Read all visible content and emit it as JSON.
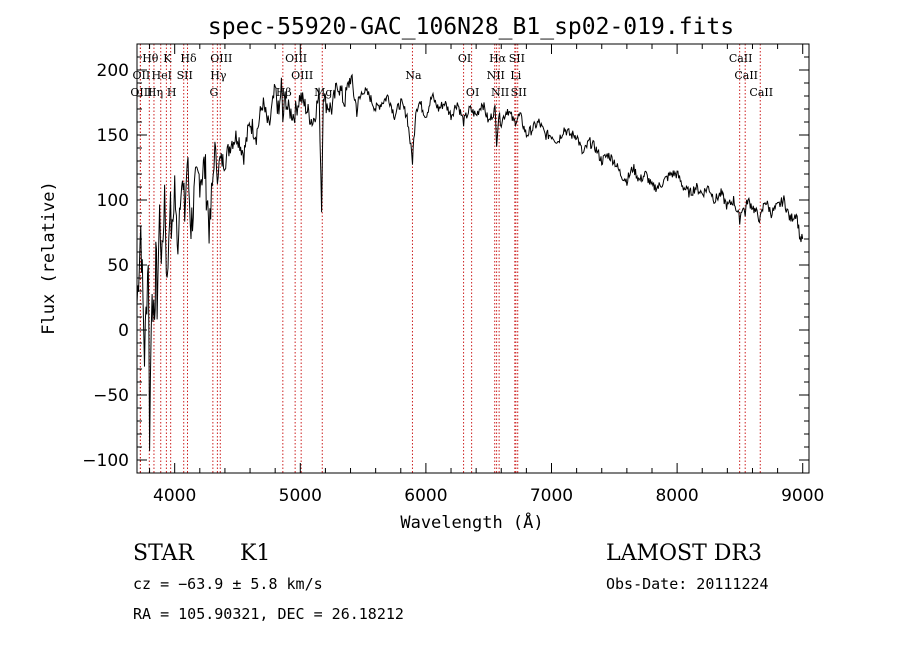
{
  "chart_data": {
    "type": "line",
    "title": "spec-55920-GAC_106N28_B1_sp02-019.fits",
    "xlabel": "Wavelength (Å)",
    "ylabel": "Flux (relative)",
    "xlim": [
      3700,
      9050
    ],
    "ylim": [
      -110,
      220
    ],
    "x_ticks": [
      4000,
      5000,
      6000,
      7000,
      8000,
      9000
    ],
    "x_tick_labels": [
      "4000",
      "5000",
      "6000",
      "7000",
      "8000",
      "9000"
    ],
    "y_ticks": [
      -100,
      -50,
      0,
      50,
      100,
      150,
      200
    ],
    "y_tick_labels": [
      "−100",
      "−50",
      "0",
      "50",
      "100",
      "150",
      "200"
    ],
    "series": [
      {
        "name": "flux",
        "x": [
          3700,
          3730,
          3760,
          3790,
          3800,
          3820,
          3840,
          3850,
          3860,
          3880,
          3900,
          3920,
          3940,
          3960,
          3980,
          4000,
          4020,
          4050,
          4080,
          4100,
          4130,
          4160,
          4200,
          4240,
          4280,
          4300,
          4320,
          4340,
          4360,
          4400,
          4450,
          4500,
          4550,
          4600,
          4650,
          4700,
          4750,
          4800,
          4830,
          4850,
          4861,
          4880,
          4900,
          4950,
          5000,
          5050,
          5100,
          5150,
          5170,
          5183,
          5200,
          5250,
          5300,
          5350,
          5400,
          5450,
          5500,
          5550,
          5600,
          5650,
          5700,
          5750,
          5800,
          5850,
          5893,
          5920,
          5950,
          6000,
          6050,
          6100,
          6150,
          6200,
          6250,
          6300,
          6350,
          6400,
          6450,
          6500,
          6550,
          6563,
          6580,
          6600,
          6650,
          6700,
          6750,
          6800,
          6850,
          6900,
          6950,
          7000,
          7050,
          7100,
          7150,
          7200,
          7250,
          7300,
          7350,
          7400,
          7450,
          7500,
          7550,
          7600,
          7650,
          7700,
          7750,
          7800,
          7850,
          7900,
          7950,
          8000,
          8050,
          8100,
          8150,
          8200,
          8250,
          8300,
          8350,
          8400,
          8450,
          8498,
          8520,
          8542,
          8560,
          8600,
          8662,
          8700,
          8750,
          8800,
          8850,
          8900,
          8950,
          8980,
          9000
        ],
        "y": [
          20,
          80,
          -20,
          60,
          -80,
          40,
          -10,
          70,
          20,
          90,
          50,
          110,
          30,
          100,
          70,
          115,
          60,
          120,
          90,
          130,
          80,
          105,
          120,
          125,
          75,
          110,
          140,
          120,
          130,
          130,
          145,
          150,
          135,
          160,
          150,
          175,
          155,
          185,
          165,
          190,
          160,
          180,
          170,
          165,
          180,
          170,
          160,
          180,
          95,
          185,
          175,
          170,
          190,
          175,
          195,
          170,
          185,
          180,
          170,
          175,
          180,
          165,
          175,
          165,
          130,
          170,
          175,
          165,
          180,
          170,
          175,
          165,
          175,
          160,
          170,
          165,
          175,
          160,
          170,
          145,
          165,
          160,
          170,
          160,
          165,
          150,
          155,
          160,
          150,
          150,
          145,
          155,
          150,
          150,
          135,
          145,
          140,
          130,
          135,
          130,
          120,
          115,
          125,
          115,
          120,
          110,
          110,
          115,
          120,
          120,
          110,
          105,
          110,
          105,
          110,
          100,
          105,
          95,
          100,
          85,
          95,
          90,
          100,
          95,
          85,
          100,
          90,
          95,
          100,
          85,
          90,
          70,
          70
        ]
      }
    ],
    "line_markers": [
      {
        "label": "Hθ",
        "x": 3798,
        "row": 0
      },
      {
        "label": "K",
        "x": 3934,
        "row": 0
      },
      {
        "label": "Hδ",
        "x": 4102,
        "row": 0
      },
      {
        "label": "OIII",
        "x": 4363,
        "row": 0
      },
      {
        "label": "OIII",
        "x": 4959,
        "row": 0
      },
      {
        "label": "OI",
        "x": 6300,
        "row": 0
      },
      {
        "label": "Hα",
        "x": 6563,
        "row": 0
      },
      {
        "label": "SII",
        "x": 6716,
        "row": 0
      },
      {
        "label": "CaII",
        "x": 8498,
        "row": 0
      },
      {
        "label": "OII",
        "x": 3727,
        "row": 1
      },
      {
        "label": "HeI",
        "x": 3889,
        "row": 1
      },
      {
        "label": "SII",
        "x": 4072,
        "row": 1
      },
      {
        "label": "Hγ",
        "x": 4340,
        "row": 1
      },
      {
        "label": "OIII",
        "x": 5007,
        "row": 1
      },
      {
        "label": "Na",
        "x": 5893,
        "row": 1
      },
      {
        "label": "NII",
        "x": 6548,
        "row": 1
      },
      {
        "label": "Li",
        "x": 6708,
        "row": 1
      },
      {
        "label": "CaII",
        "x": 8542,
        "row": 1
      },
      {
        "label": "OIII",
        "x": 3727,
        "row": 2
      },
      {
        "label": "Hη",
        "x": 3835,
        "row": 2
      },
      {
        "label": "H",
        "x": 3968,
        "row": 2
      },
      {
        "label": "G",
        "x": 4304,
        "row": 2
      },
      {
        "label": "Hβ",
        "x": 4861,
        "row": 2
      },
      {
        "label": "Mg",
        "x": 5175,
        "row": 2
      },
      {
        "label": "OI",
        "x": 6364,
        "row": 2
      },
      {
        "label": "NII",
        "x": 6583,
        "row": 2
      },
      {
        "label": "SII",
        "x": 6731,
        "row": 2
      },
      {
        "label": "CaII",
        "x": 8662,
        "row": 2
      }
    ]
  },
  "info": {
    "object_class": "STAR",
    "subclass": "K1",
    "survey": "LAMOST DR3",
    "cz": "cz = −63.9 ± 5.8 km/s",
    "obs_date": "Obs-Date: 20111224",
    "coords": "RA = 105.90321, DEC =  26.18212"
  },
  "colors": {
    "line": "#000000",
    "marker": "#cc2020",
    "axis": "#000000"
  }
}
